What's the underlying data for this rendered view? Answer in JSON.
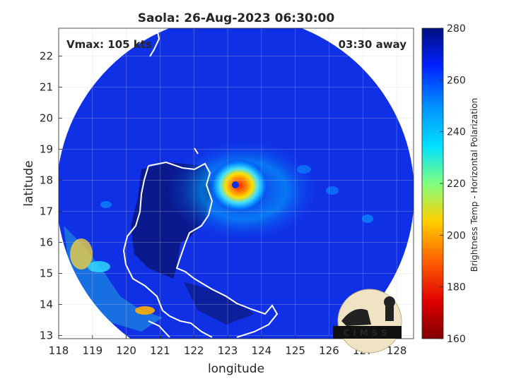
{
  "title": "Saola: 26-Aug-2023 06:30:00",
  "vmax_label": "Vmax: 105 kts",
  "time_away": "03:30 away",
  "x_axis": {
    "label": "longitude",
    "min": 118,
    "max": 128.5,
    "ticks": [
      118,
      119,
      120,
      121,
      122,
      123,
      124,
      125,
      126,
      127,
      128
    ]
  },
  "y_axis": {
    "label": "latitude",
    "min": 12.9,
    "max": 22.9,
    "ticks": [
      13,
      14,
      15,
      16,
      17,
      18,
      19,
      20,
      21,
      22
    ]
  },
  "colorbar": {
    "label": "Brightness Temp - Horizontal Polarization",
    "min": 160,
    "max": 280,
    "ticks": [
      160,
      180,
      200,
      220,
      240,
      260,
      280
    ],
    "colormap": [
      "#7f0000",
      "#ff0000",
      "#ff7f00",
      "#ffff00",
      "#7fff7f",
      "#00ffff",
      "#007fff",
      "#0000ff",
      "#00007f"
    ]
  },
  "storm_center": {
    "lon": 123.2,
    "lat": 17.9
  },
  "logo": {
    "text": "CIMSS"
  },
  "colors": {
    "background_ocean": "#1030e6",
    "land_shadow": "#0a1a8c",
    "eye_warm": "#ff6a00",
    "coastline": "#ffffff"
  }
}
